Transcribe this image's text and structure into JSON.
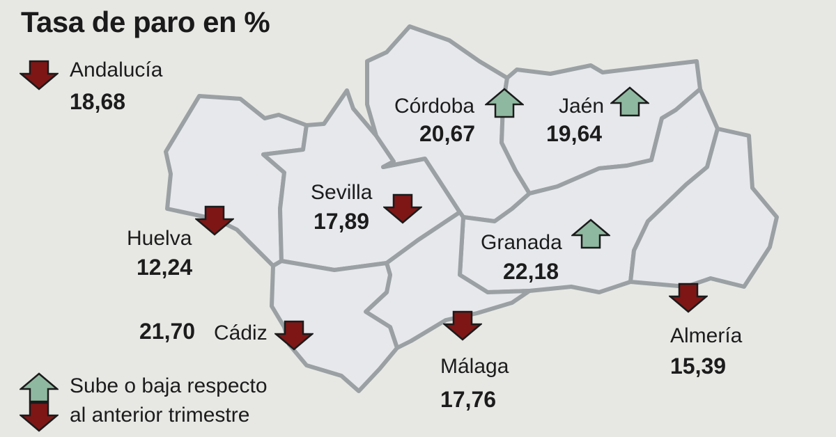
{
  "title": "Tasa de paro en %",
  "colors": {
    "up": "#8fb8a0",
    "down": "#7e1616",
    "province_fill": "#e6e8ec",
    "province_stroke": "#9aa0a3",
    "background": "#e7e8e4"
  },
  "icons": {
    "up": "arrow-up-icon",
    "down": "arrow-down-icon"
  },
  "region": {
    "name": "Andalucía",
    "value": "18,68",
    "trend": "down"
  },
  "provinces": [
    {
      "id": "cordoba",
      "name": "Córdoba",
      "value": "20,67",
      "trend": "up"
    },
    {
      "id": "jaen",
      "name": "Jaén",
      "value": "19,64",
      "trend": "up"
    },
    {
      "id": "sevilla",
      "name": "Sevilla",
      "value": "17,89",
      "trend": "down"
    },
    {
      "id": "huelva",
      "name": "Huelva",
      "value": "12,24",
      "trend": "down"
    },
    {
      "id": "granada",
      "name": "Granada",
      "value": "22,18",
      "trend": "up"
    },
    {
      "id": "cadiz",
      "name": "Cádiz",
      "value": "21,70",
      "trend": "down"
    },
    {
      "id": "malaga",
      "name": "Málaga",
      "value": "17,76",
      "trend": "down"
    },
    {
      "id": "almeria",
      "name": "Almería",
      "value": "15,39",
      "trend": "down"
    }
  ],
  "legend": {
    "line1": "Sube o baja respecto",
    "line2": "al anterior trimestre"
  }
}
